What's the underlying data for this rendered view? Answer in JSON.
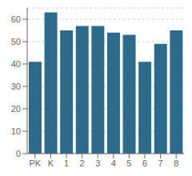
{
  "chart_data": {
    "type": "bar",
    "categories": [
      "PK",
      "K",
      "1",
      "2",
      "3",
      "4",
      "5",
      "6",
      "7",
      "8"
    ],
    "values": [
      41,
      63,
      55,
      57,
      57,
      54,
      53,
      41,
      49,
      55
    ],
    "color": "#2e6b8a",
    "ylim": [
      0,
      65
    ],
    "yticks": [
      0,
      10,
      20,
      30,
      40,
      50,
      60
    ],
    "grid": true
  }
}
